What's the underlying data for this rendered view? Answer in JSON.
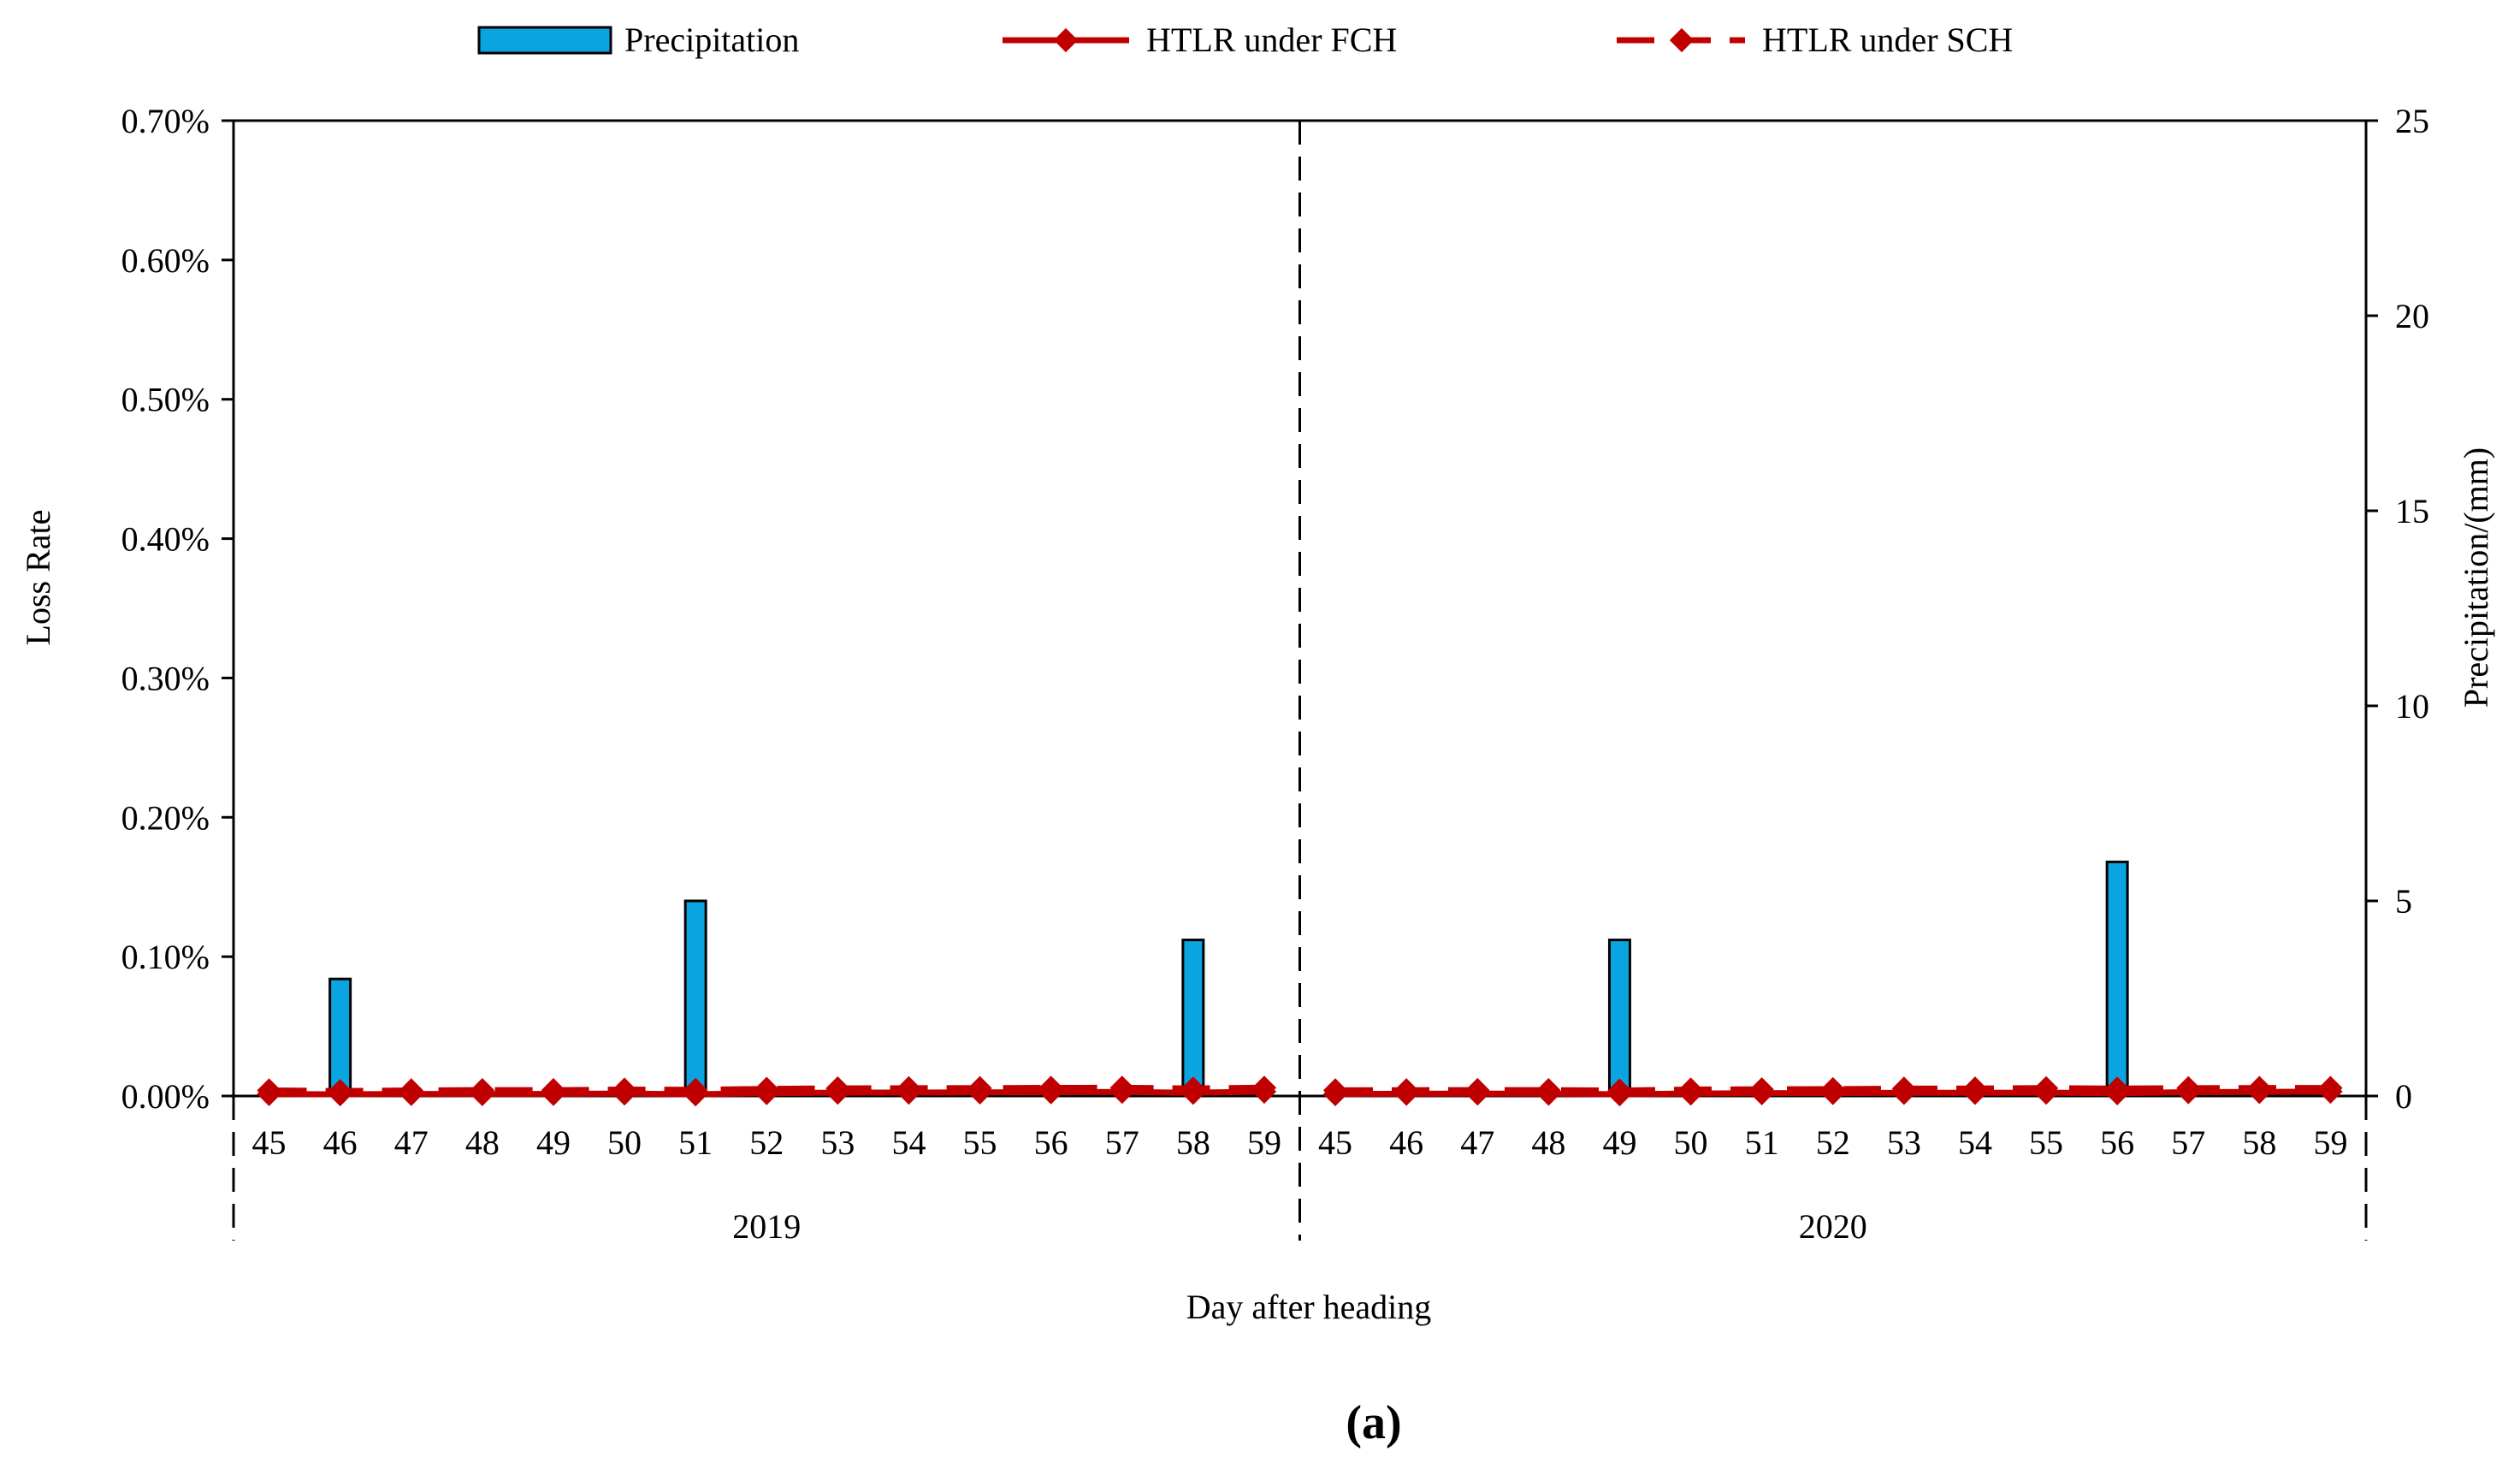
{
  "chart_data": {
    "type": "bar+line",
    "legend": {
      "position": "top",
      "entries": [
        "Precipitation",
        "HTLR under FCH",
        "HTLR under SCH"
      ]
    },
    "colors": {
      "bar_fill": "#0aa5e0",
      "bar_stroke": "#000000",
      "line": "#c00000",
      "axis": "#000000"
    },
    "ylabel_left": "Loss Rate",
    "ylabel_right": "Precipitation/(mm)",
    "xlabel": "Day after heading",
    "caption": "(a)",
    "left_axis": {
      "min": 0,
      "max": 0.7,
      "ticks": [
        "0.00%",
        "0.10%",
        "0.20%",
        "0.30%",
        "0.40%",
        "0.50%",
        "0.60%",
        "0.70%"
      ]
    },
    "right_axis": {
      "min": 0,
      "max": 25,
      "ticks": [
        "0",
        "5",
        "10",
        "15",
        "20",
        "25"
      ]
    },
    "categories": [
      "45",
      "46",
      "47",
      "48",
      "49",
      "50",
      "51",
      "52",
      "53",
      "54",
      "55",
      "56",
      "57",
      "58",
      "59",
      "45",
      "46",
      "47",
      "48",
      "49",
      "50",
      "51",
      "52",
      "53",
      "54",
      "55",
      "56",
      "57",
      "58",
      "59"
    ],
    "groups": [
      {
        "label": "2019",
        "start": 0,
        "end": 14
      },
      {
        "label": "2020",
        "start": 15,
        "end": 29
      }
    ],
    "series": [
      {
        "name": "Precipitation",
        "type": "bar",
        "axis": "right",
        "values": [
          0,
          3.0,
          0,
          0,
          0,
          0,
          5.0,
          0,
          0,
          0,
          0,
          0,
          0,
          4.0,
          0,
          0,
          0,
          0,
          0,
          4.0,
          0,
          0,
          0,
          0,
          0,
          0,
          6.0,
          0,
          0,
          0
        ]
      },
      {
        "name": "HTLR under FCH",
        "type": "line",
        "style": "solid",
        "axis": "left",
        "values": [
          0.0014,
          0.00124,
          0.00146,
          0.00143,
          0.00148,
          0.00177,
          0.0012,
          0.00209,
          0.00237,
          0.00244,
          0.00259,
          0.00268,
          0.00297,
          0.00232,
          0.00314,
          0.00133,
          0.00162,
          0.00174,
          0.00168,
          0.00122,
          0.0018,
          0.00202,
          0.00215,
          0.00229,
          0.00226,
          0.00242,
          0.00205,
          0.00277,
          0.00296,
          0.00314
        ],
        "errors": [
          8e-05,
          6e-05,
          6e-05,
          4e-05,
          4e-05,
          5e-05,
          7e-05,
          0.0001,
          7e-05,
          5e-05,
          4e-05,
          0.00011,
          5e-05,
          7e-05,
          8e-05,
          5e-05,
          6e-05,
          5e-05,
          7e-05,
          4e-05,
          0.0001,
          6e-05,
          7e-05,
          0.00013,
          5e-05,
          6e-05,
          6e-05,
          4e-05,
          4e-05,
          4e-05
        ]
      },
      {
        "name": "HTLR under SCH",
        "type": "line",
        "style": "dashed",
        "axis": "left",
        "values": [
          0.00397,
          0.00347,
          0.004,
          0.00425,
          0.00415,
          0.00461,
          0.00441,
          0.00509,
          0.00545,
          0.00559,
          0.00566,
          0.00582,
          0.00587,
          0.00533,
          0.00596,
          0.00407,
          0.00415,
          0.00423,
          0.00423,
          0.00391,
          0.00463,
          0.00479,
          0.00492,
          0.00527,
          0.00536,
          0.00565,
          0.00532,
          0.0056,
          0.00574,
          0.00576
        ],
        "errors": [
          6e-05,
          8e-05,
          8e-05,
          0.00012,
          0.00012,
          5e-05,
          6e-05,
          7e-05,
          5e-05,
          6e-05,
          0.00012,
          7e-05,
          7e-05,
          7e-05,
          6e-05,
          6e-05,
          8e-05,
          6e-05,
          6e-05,
          5e-05,
          6e-05,
          8e-05,
          6e-05,
          0.0001,
          5e-05,
          4e-05,
          8e-05,
          6e-05,
          7e-05,
          9e-05
        ]
      }
    ]
  }
}
